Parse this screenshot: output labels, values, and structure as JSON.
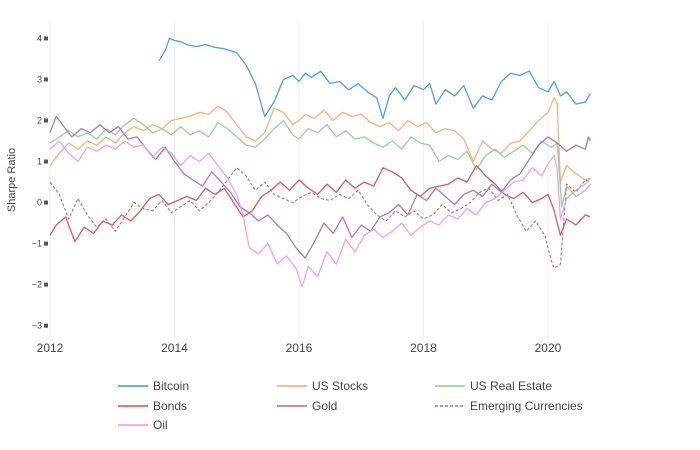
{
  "chart_data": {
    "type": "line",
    "xlabel": "",
    "ylabel": "Sharpe Ratio",
    "xlim": [
      2012.0,
      2021.8
    ],
    "ylim": [
      -3.3,
      4.4
    ],
    "x_ticks": [
      2012,
      2014,
      2016,
      2018,
      2020
    ],
    "y_ticks": [
      -3,
      -2,
      -1,
      0,
      1,
      2,
      3,
      4
    ],
    "grid": "vertical",
    "legend_position": "bottom",
    "series": [
      {
        "name": "Bitcoin",
        "color": "#3b96e6",
        "dash": "solid",
        "x": [
          2013.75,
          2013.85,
          2013.92,
          2014.0,
          2014.1,
          2014.2,
          2014.35,
          2014.5,
          2014.65,
          2014.8,
          2015.0,
          2015.15,
          2015.3,
          2015.45,
          2015.6,
          2015.75,
          2015.9,
          2016.0,
          2016.1,
          2016.2,
          2016.35,
          2016.5,
          2016.65,
          2016.8,
          2016.95,
          2017.1,
          2017.25,
          2017.35,
          2017.45,
          2017.55,
          2017.7,
          2017.85,
          2018.0,
          2018.1,
          2018.2,
          2018.35,
          2018.5,
          2018.65,
          2018.8,
          2018.95,
          2019.1,
          2019.25,
          2019.4,
          2019.55,
          2019.7,
          2019.85,
          2020.0,
          2020.1,
          2020.2,
          2020.3,
          2020.45,
          2020.6,
          2020.68
        ],
        "y": [
          3.45,
          3.7,
          4.0,
          3.95,
          3.92,
          3.85,
          3.8,
          3.85,
          3.78,
          3.75,
          3.65,
          3.35,
          2.9,
          2.1,
          2.45,
          3.0,
          3.1,
          2.95,
          3.15,
          3.05,
          3.2,
          2.9,
          2.95,
          2.75,
          2.9,
          2.7,
          2.55,
          2.05,
          2.6,
          2.8,
          2.5,
          2.85,
          2.75,
          2.9,
          2.4,
          2.75,
          2.6,
          2.85,
          2.3,
          2.6,
          2.5,
          2.95,
          3.15,
          3.1,
          3.2,
          2.8,
          2.7,
          2.95,
          2.6,
          2.7,
          2.4,
          2.45,
          2.65
        ]
      },
      {
        "name": "US Stocks",
        "color": "#f5ab6e",
        "dash": "solid",
        "x": [
          2012.0,
          2012.15,
          2012.3,
          2012.45,
          2012.6,
          2012.75,
          2012.9,
          2013.05,
          2013.2,
          2013.35,
          2013.5,
          2013.65,
          2013.8,
          2013.95,
          2014.1,
          2014.25,
          2014.4,
          2014.55,
          2014.7,
          2014.85,
          2015.0,
          2015.15,
          2015.3,
          2015.45,
          2015.6,
          2015.75,
          2015.9,
          2016.0,
          2016.1,
          2016.25,
          2016.4,
          2016.55,
          2016.7,
          2016.85,
          2017.0,
          2017.15,
          2017.3,
          2017.45,
          2017.6,
          2017.75,
          2017.9,
          2018.05,
          2018.2,
          2018.35,
          2018.5,
          2018.65,
          2018.8,
          2018.95,
          2019.1,
          2019.25,
          2019.4,
          2019.55,
          2019.7,
          2019.85,
          2020.0,
          2020.1,
          2020.15,
          2020.2,
          2020.3,
          2020.45,
          2020.6,
          2020.68
        ],
        "y": [
          0.9,
          1.2,
          1.45,
          1.3,
          1.5,
          1.4,
          1.6,
          1.45,
          1.7,
          1.85,
          1.75,
          1.9,
          1.8,
          2.0,
          2.05,
          2.1,
          2.2,
          2.15,
          2.35,
          2.2,
          1.9,
          1.6,
          1.5,
          1.7,
          2.3,
          2.2,
          1.9,
          2.0,
          2.15,
          2.05,
          2.25,
          2.0,
          2.2,
          2.1,
          2.15,
          1.95,
          1.85,
          1.95,
          1.75,
          2.0,
          1.85,
          1.95,
          1.7,
          1.8,
          1.75,
          1.55,
          1.0,
          1.5,
          1.3,
          1.2,
          1.45,
          1.5,
          1.75,
          2.0,
          2.2,
          2.55,
          2.4,
          0.5,
          0.9,
          0.7,
          0.55,
          0.6
        ]
      },
      {
        "name": "US Real Estate",
        "color": "#8ccf86",
        "dash": "solid",
        "x": [
          2012.0,
          2012.15,
          2012.3,
          2012.45,
          2012.6,
          2012.75,
          2012.9,
          2013.05,
          2013.2,
          2013.35,
          2013.5,
          2013.65,
          2013.8,
          2013.95,
          2014.1,
          2014.25,
          2014.4,
          2014.55,
          2014.7,
          2014.85,
          2015.0,
          2015.15,
          2015.3,
          2015.45,
          2015.6,
          2015.75,
          2015.9,
          2016.0,
          2016.15,
          2016.3,
          2016.45,
          2016.6,
          2016.75,
          2016.9,
          2017.05,
          2017.2,
          2017.35,
          2017.5,
          2017.65,
          2017.8,
          2017.95,
          2018.1,
          2018.25,
          2018.4,
          2018.55,
          2018.7,
          2018.85,
          2019.0,
          2019.15,
          2019.3,
          2019.45,
          2019.6,
          2019.75,
          2019.9,
          2020.05,
          2020.15,
          2020.22,
          2020.3,
          2020.45,
          2020.6,
          2020.68
        ],
        "y": [
          1.45,
          1.6,
          1.75,
          1.6,
          1.7,
          1.55,
          1.8,
          1.65,
          1.9,
          2.05,
          1.9,
          1.7,
          1.8,
          1.65,
          1.85,
          1.65,
          1.75,
          1.6,
          1.95,
          1.8,
          1.6,
          1.4,
          1.35,
          1.55,
          1.8,
          2.0,
          1.65,
          1.55,
          1.8,
          1.7,
          1.9,
          1.6,
          1.75,
          1.55,
          1.6,
          1.45,
          1.35,
          1.5,
          1.3,
          1.6,
          1.45,
          1.4,
          1.0,
          1.15,
          1.05,
          1.25,
          0.8,
          1.15,
          1.3,
          1.1,
          1.25,
          1.4,
          1.2,
          1.5,
          1.35,
          1.45,
          -0.1,
          0.4,
          0.15,
          0.3,
          0.45
        ]
      },
      {
        "name": "Bonds",
        "color": "#d94a4a",
        "dash": "solid",
        "x": [
          2012.0,
          2012.1,
          2012.25,
          2012.4,
          2012.55,
          2012.7,
          2012.85,
          2013.0,
          2013.15,
          2013.3,
          2013.45,
          2013.6,
          2013.75,
          2013.9,
          2014.05,
          2014.2,
          2014.35,
          2014.5,
          2014.65,
          2014.8,
          2014.95,
          2015.1,
          2015.25,
          2015.4,
          2015.55,
          2015.7,
          2015.85,
          2016.0,
          2016.15,
          2016.3,
          2016.45,
          2016.6,
          2016.75,
          2016.9,
          2017.05,
          2017.2,
          2017.35,
          2017.5,
          2017.65,
          2017.8,
          2017.95,
          2018.1,
          2018.25,
          2018.4,
          2018.55,
          2018.7,
          2018.85,
          2019.0,
          2019.15,
          2019.3,
          2019.45,
          2019.6,
          2019.75,
          2019.9,
          2020.0,
          2020.1,
          2020.2,
          2020.3,
          2020.45,
          2020.6,
          2020.68
        ],
        "y": [
          -0.8,
          -0.55,
          -0.35,
          -0.95,
          -0.6,
          -0.75,
          -0.45,
          -0.55,
          -0.3,
          -0.45,
          -0.2,
          0.1,
          0.2,
          -0.05,
          0.05,
          0.15,
          0.05,
          0.35,
          0.2,
          0.35,
          0.0,
          -0.35,
          -0.2,
          0.15,
          0.3,
          0.5,
          0.3,
          0.55,
          0.35,
          0.2,
          0.45,
          0.25,
          0.55,
          0.35,
          0.5,
          0.4,
          0.85,
          0.75,
          0.6,
          0.3,
          0.15,
          0.35,
          0.4,
          0.45,
          0.6,
          0.5,
          0.9,
          0.65,
          0.45,
          0.2,
          0.1,
          0.25,
          0.0,
          0.1,
          0.2,
          -0.2,
          -0.8,
          -0.4,
          -0.55,
          -0.3,
          -0.35
        ]
      },
      {
        "name": "Gold",
        "color": "#9b6cc4",
        "dash": "solid",
        "x": [
          2012.0,
          2012.1,
          2012.2,
          2012.35,
          2012.5,
          2012.65,
          2012.8,
          2012.95,
          2013.1,
          2013.25,
          2013.4,
          2013.55,
          2013.7,
          2013.85,
          2014.0,
          2014.15,
          2014.3,
          2014.45,
          2014.6,
          2014.75,
          2014.9,
          2015.05,
          2015.2,
          2015.35,
          2015.5,
          2015.65,
          2015.8,
          2015.95,
          2016.1,
          2016.25,
          2016.4,
          2016.55,
          2016.7,
          2016.85,
          2017.0,
          2017.15,
          2017.3,
          2017.45,
          2017.6,
          2017.75,
          2017.9,
          2018.05,
          2018.2,
          2018.35,
          2018.5,
          2018.65,
          2018.8,
          2018.95,
          2019.1,
          2019.25,
          2019.4,
          2019.55,
          2019.7,
          2019.85,
          2020.0,
          2020.15,
          2020.3,
          2020.45,
          2020.6,
          2020.65,
          2020.68
        ],
        "y": [
          1.7,
          2.1,
          1.9,
          1.6,
          1.8,
          1.7,
          1.9,
          1.7,
          1.85,
          1.55,
          1.6,
          1.3,
          1.05,
          1.35,
          1.0,
          0.7,
          0.55,
          0.4,
          0.75,
          0.5,
          0.25,
          -0.1,
          -0.25,
          -0.45,
          -0.3,
          -0.55,
          -0.75,
          -1.1,
          -1.35,
          -0.95,
          -0.5,
          -0.75,
          -0.35,
          -0.85,
          -0.55,
          -0.7,
          -0.35,
          -0.25,
          -0.05,
          -0.3,
          0.2,
          0.05,
          0.35,
          0.15,
          -0.05,
          0.2,
          0.3,
          0.15,
          0.45,
          0.25,
          0.55,
          0.7,
          1.05,
          1.4,
          1.6,
          1.45,
          1.25,
          1.4,
          1.3,
          1.6,
          1.5
        ]
      },
      {
        "name": "Emerging Currencies",
        "color": "#b07474",
        "dash": "dashed",
        "x": [
          2012.0,
          2012.15,
          2012.3,
          2012.45,
          2012.6,
          2012.75,
          2012.9,
          2013.05,
          2013.2,
          2013.35,
          2013.5,
          2013.65,
          2013.8,
          2013.95,
          2014.1,
          2014.25,
          2014.4,
          2014.55,
          2014.7,
          2014.85,
          2015.0,
          2015.15,
          2015.3,
          2015.45,
          2015.6,
          2015.75,
          2015.9,
          2016.05,
          2016.2,
          2016.35,
          2016.5,
          2016.65,
          2016.8,
          2016.95,
          2017.1,
          2017.25,
          2017.4,
          2017.55,
          2017.7,
          2017.85,
          2018.0,
          2018.15,
          2018.3,
          2018.45,
          2018.6,
          2018.75,
          2018.9,
          2019.05,
          2019.2,
          2019.35,
          2019.5,
          2019.65,
          2019.8,
          2019.95,
          2020.05,
          2020.1,
          2020.2,
          2020.3,
          2020.45,
          2020.6,
          2020.68
        ],
        "y": [
          0.5,
          0.2,
          -0.4,
          0.1,
          -0.3,
          -0.6,
          -0.4,
          -0.7,
          -0.35,
          0.0,
          -0.15,
          -0.2,
          0.05,
          -0.25,
          -0.1,
          0.05,
          -0.2,
          0.0,
          0.25,
          0.55,
          0.85,
          0.65,
          0.3,
          0.5,
          0.2,
          0.1,
          0.0,
          0.15,
          0.25,
          0.1,
          0.05,
          0.2,
          0.1,
          0.3,
          -0.05,
          -0.3,
          -0.45,
          -0.2,
          -0.35,
          -0.2,
          -0.4,
          -0.3,
          -0.05,
          -0.25,
          -0.15,
          0.0,
          0.25,
          0.35,
          0.05,
          0.2,
          -0.3,
          -0.7,
          -0.45,
          -0.8,
          -1.4,
          -1.6,
          -1.5,
          0.45,
          0.25,
          0.55,
          0.5
        ]
      },
      {
        "name": "Oil",
        "color": "#ec9ae0",
        "dash": "solid",
        "x": [
          2012.0,
          2012.15,
          2012.3,
          2012.45,
          2012.6,
          2012.75,
          2012.9,
          2013.05,
          2013.2,
          2013.35,
          2013.5,
          2013.65,
          2013.8,
          2013.95,
          2014.1,
          2014.25,
          2014.4,
          2014.55,
          2014.7,
          2014.85,
          2015.0,
          2015.1,
          2015.2,
          2015.35,
          2015.5,
          2015.65,
          2015.8,
          2015.95,
          2016.05,
          2016.15,
          2016.3,
          2016.45,
          2016.6,
          2016.75,
          2016.9,
          2017.05,
          2017.2,
          2017.35,
          2017.5,
          2017.65,
          2017.8,
          2017.95,
          2018.1,
          2018.25,
          2018.4,
          2018.55,
          2018.7,
          2018.85,
          2019.0,
          2019.15,
          2019.3,
          2019.45,
          2019.6,
          2019.75,
          2019.9,
          2020.0,
          2020.1,
          2020.15,
          2020.2,
          2020.3,
          2020.45,
          2020.6,
          2020.68
        ],
        "y": [
          1.3,
          1.5,
          1.2,
          1.0,
          1.35,
          1.25,
          1.4,
          1.3,
          1.5,
          1.35,
          1.4,
          1.1,
          1.35,
          1.2,
          0.9,
          1.15,
          1.0,
          1.2,
          0.9,
          0.6,
          0.2,
          -0.3,
          -1.1,
          -1.25,
          -1.0,
          -1.5,
          -1.3,
          -1.6,
          -2.05,
          -1.55,
          -1.8,
          -1.2,
          -1.5,
          -0.9,
          -1.2,
          -0.8,
          -0.65,
          -0.85,
          -0.7,
          -0.5,
          -0.8,
          -0.6,
          -0.45,
          -0.55,
          -0.3,
          -0.4,
          -0.15,
          -0.3,
          0.0,
          0.1,
          0.3,
          0.5,
          0.55,
          0.85,
          0.65,
          0.95,
          1.15,
          0.8,
          -0.4,
          0.1,
          0.3,
          0.45,
          0.6
        ]
      }
    ]
  }
}
